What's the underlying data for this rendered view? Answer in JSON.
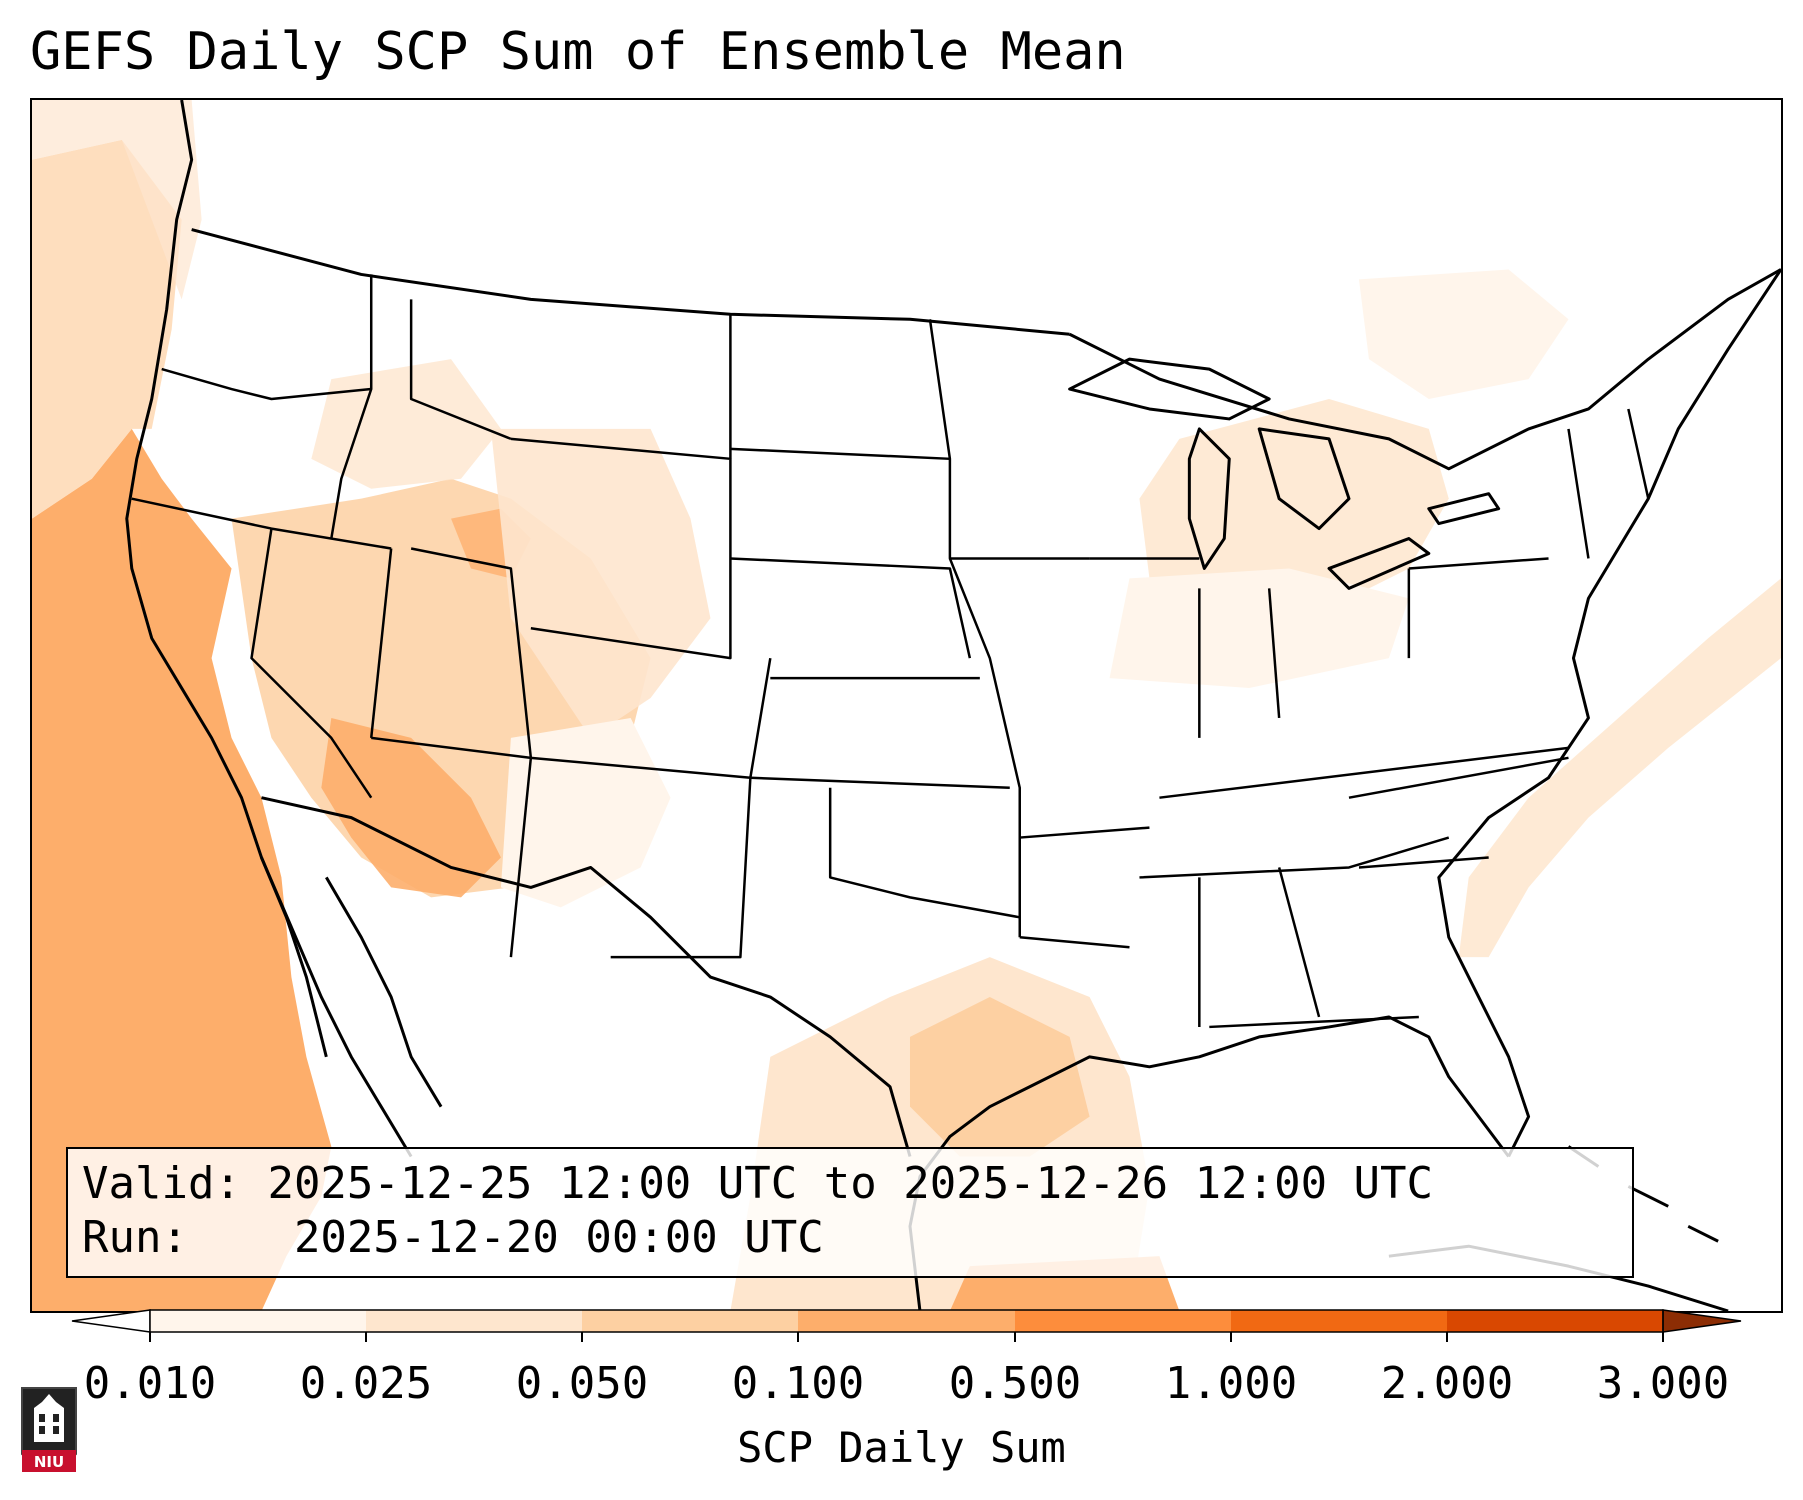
{
  "title": "GEFS Daily SCP Sum of Ensemble Mean",
  "info": {
    "valid_label": "Valid:",
    "valid_value": "2025-12-25 12:00 UTC to 2025-12-26 12:00 UTC",
    "run_label": "Run:",
    "run_value": "2025-12-20 00:00 UTC"
  },
  "colorbar": {
    "label": "SCP Daily Sum",
    "ticks": [
      "0.010",
      "0.025",
      "0.050",
      "0.100",
      "0.500",
      "1.000",
      "2.000",
      "3.000"
    ],
    "colors": [
      "#fff5eb",
      "#fee6ce",
      "#fdd0a2",
      "#fdae6b",
      "#fd8d3c",
      "#f16913",
      "#d94801"
    ],
    "under_color": "#ffffff",
    "over_color": "#8c2d04"
  },
  "map": {
    "region": "Contiguous United States",
    "field": "SCP Daily Sum",
    "highlighted_areas": [
      {
        "area": "Eastern Pacific off California and Baja California",
        "category": "0.100-0.500"
      },
      {
        "area": "Southern California, Arizona, Nevada, Utah",
        "category": "0.025-0.100"
      },
      {
        "area": "Western Gulf of Mexico off Texas coast",
        "category": "0.050-0.100"
      },
      {
        "area": "Southern Gulf of Mexico",
        "category": "0.100-0.500"
      },
      {
        "area": "Great Lakes region",
        "category": "0.010-0.025"
      },
      {
        "area": "Western Atlantic east of the Carolinas",
        "category": "0.010-0.025"
      }
    ]
  },
  "logo": {
    "text": "NIU"
  }
}
